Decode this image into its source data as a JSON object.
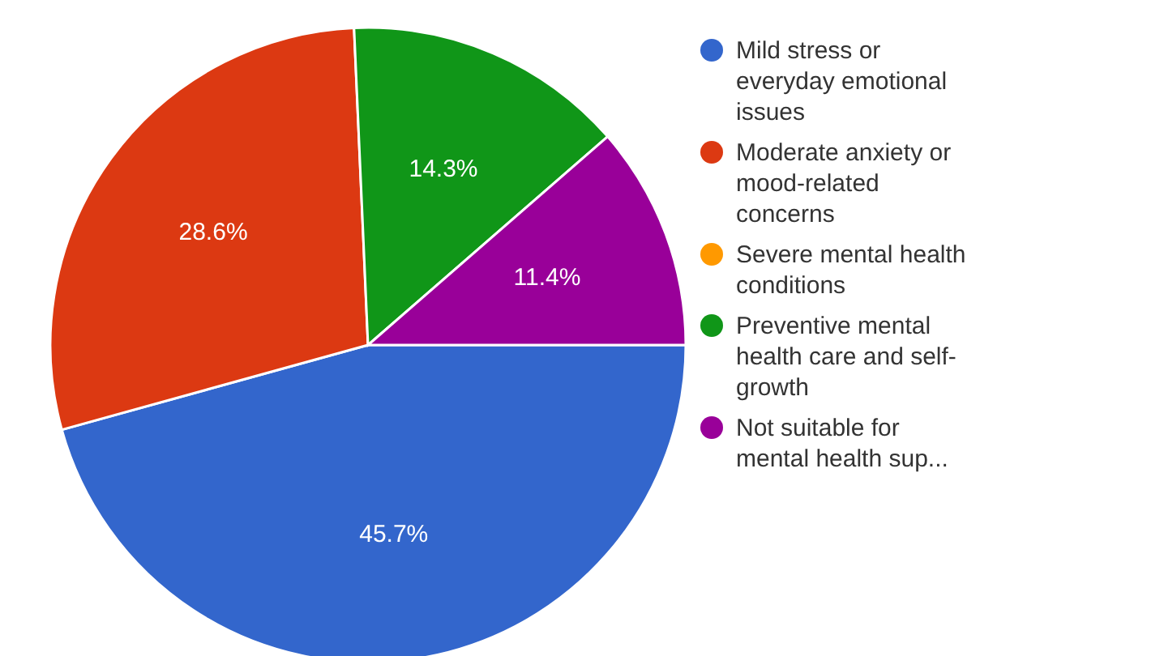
{
  "chart_data": {
    "type": "pie",
    "categories": [
      "Mild stress or everyday emotional issues",
      "Moderate anxiety or mood-related concerns",
      "Severe mental health conditions",
      "Preventive mental health care and self-growth",
      "Not suitable for mental health sup..."
    ],
    "values": [
      45.7,
      28.6,
      0,
      14.3,
      11.4
    ],
    "value_labels": [
      "45.7%",
      "28.6%",
      null,
      "14.3%",
      "11.4%"
    ],
    "colors": [
      "#3366cc",
      "#dc3912",
      "#ff9900",
      "#109618",
      "#990099"
    ],
    "legend": "right"
  }
}
